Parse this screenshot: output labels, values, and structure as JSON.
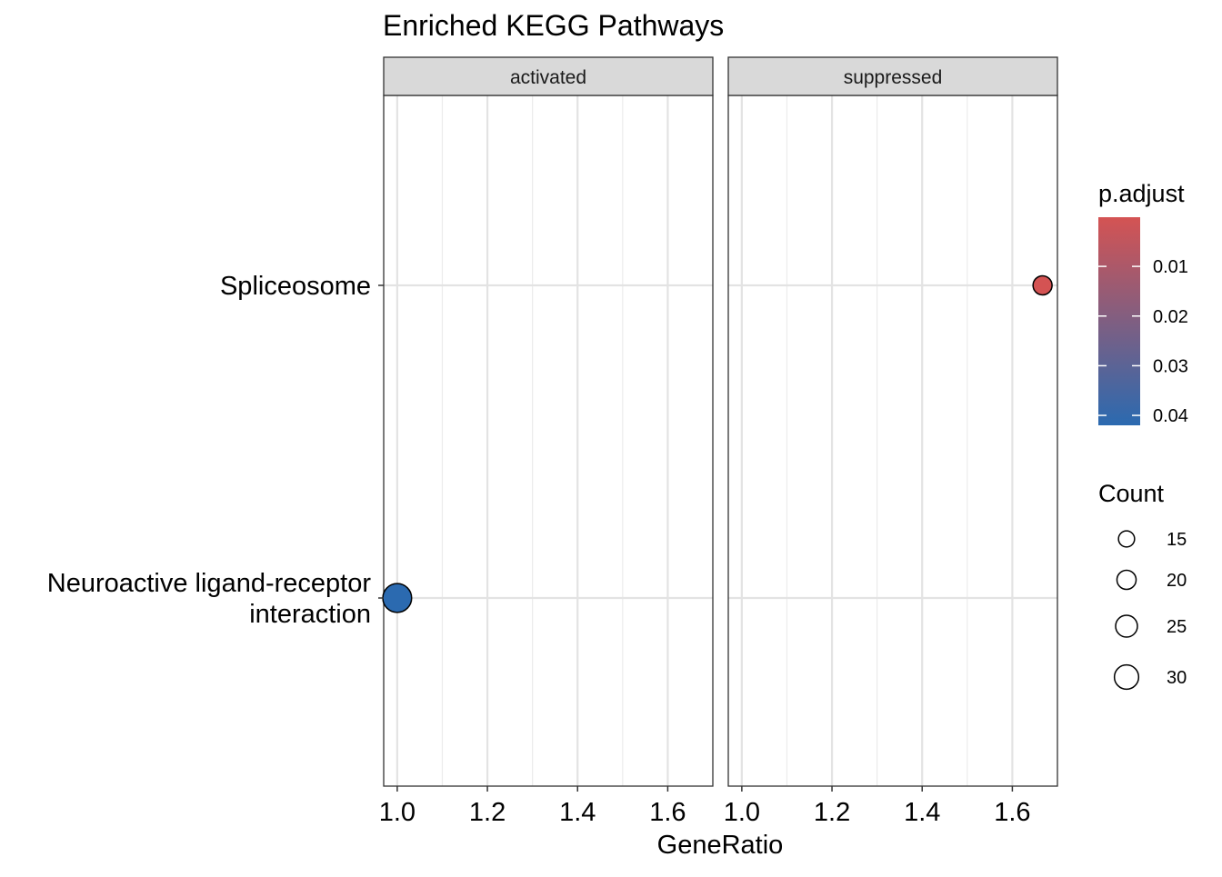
{
  "chart_data": {
    "type": "scatter",
    "title": "Enriched KEGG Pathways",
    "xlabel": "GeneRatio",
    "ylabel": "",
    "facets": [
      "activated",
      "suppressed"
    ],
    "categories": [
      "Neuroactive ligand-receptor interaction",
      "Spliceosome"
    ],
    "category_lines": [
      [
        "Neuroactive ligand-receptor",
        "interaction"
      ],
      [
        "Spliceosome"
      ]
    ],
    "xlim": [
      0.97,
      1.7
    ],
    "xticks": [
      1.0,
      1.2,
      1.4,
      1.6
    ],
    "xtick_labels": [
      "1.0",
      "1.2",
      "1.4",
      "1.6"
    ],
    "grid": true,
    "points": [
      {
        "facet": "activated",
        "category": "Neuroactive ligand-receptor interaction",
        "x": 1.0,
        "count": 32,
        "p_adjust": 0.042
      },
      {
        "facet": "suppressed",
        "category": "Spliceosome",
        "x": 1.667,
        "count": 14,
        "p_adjust": 0.0001
      }
    ],
    "color_legend": {
      "title": "p.adjust",
      "range": [
        0.0001,
        0.042
      ],
      "low_color": "#d45353",
      "high_color": "#2b6ab0",
      "ticks": [
        0.01,
        0.02,
        0.03,
        0.04
      ],
      "tick_labels": [
        "0.01",
        "0.02",
        "0.03",
        "0.04"
      ]
    },
    "size_legend": {
      "title": "Count",
      "values": [
        15,
        20,
        25,
        30
      ],
      "labels": [
        "15",
        "20",
        "25",
        "30"
      ]
    }
  }
}
